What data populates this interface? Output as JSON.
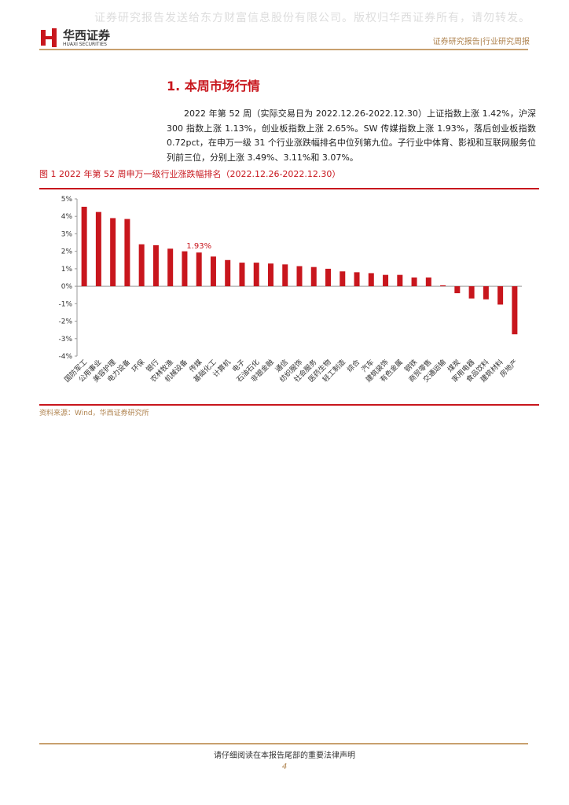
{
  "watermark": "证券研究报告发送给东方财富信息股份有限公司。版权归华西证券所有，请勿转发。",
  "header": {
    "logo_cn": "华西证券",
    "logo_en": "HUAXI SECURITIES",
    "right": "证券研究报告|行业研究周报"
  },
  "section_title": "1. 本周市场行情",
  "paragraph": "2022 年第 52 周（实际交易日为 2022.12.26-2022.12.30）上证指数上涨 1.42%，沪深 300 指数上涨 1.13%，创业板指数上涨 2.65%。SW 传媒指数上涨 1.93%，落后创业板指数 0.72pct，在申万一级 31 个行业涨跌幅排名中位列第九位。子行业中体育、影视和互联网服务位列前三位，分别上涨 3.49%、3.11%和 3.07%。",
  "figure_caption": "图 1 2022 年第 52 周申万一级行业涨跌幅排名（2022.12.26-2022.12.30）",
  "chart_data": {
    "type": "bar",
    "color": "#c8161d",
    "categories": [
      "国防军工",
      "公用事业",
      "美容护理",
      "电力设备",
      "环保",
      "银行",
      "农林牧渔",
      "机械设备",
      "传媒",
      "基础化工",
      "计算机",
      "电子",
      "石油石化",
      "非银金融",
      "通信",
      "纺织服饰",
      "社会服务",
      "医药生物",
      "轻工制造",
      "综合",
      "汽车",
      "建筑装饰",
      "有色金属",
      "钢铁",
      "商贸零售",
      "交通运输",
      "煤炭",
      "家用电器",
      "食品饮料",
      "建筑材料",
      "房地产"
    ],
    "values": [
      4.55,
      4.25,
      3.9,
      3.85,
      2.4,
      2.35,
      2.15,
      2.0,
      1.93,
      1.7,
      1.5,
      1.35,
      1.35,
      1.3,
      1.25,
      1.15,
      1.1,
      1.0,
      0.85,
      0.8,
      0.75,
      0.65,
      0.65,
      0.5,
      0.5,
      0.05,
      -0.4,
      -0.7,
      -0.75,
      -1.05,
      -2.75
    ],
    "value_labels": [
      null,
      null,
      null,
      null,
      null,
      null,
      null,
      null,
      "1.93%",
      null,
      null,
      null,
      null,
      null,
      null,
      null,
      null,
      null,
      null,
      null,
      null,
      null,
      null,
      null,
      null,
      null,
      null,
      null,
      null,
      null,
      null
    ],
    "ylim": [
      -4,
      5
    ],
    "yticks": [
      {
        "value": -4,
        "label": "-4%"
      },
      {
        "value": -3,
        "label": "-3%"
      },
      {
        "value": -2,
        "label": "-2%"
      },
      {
        "value": -1,
        "label": "-1%"
      },
      {
        "value": 0,
        "label": "0%"
      },
      {
        "value": 1,
        "label": "1%"
      },
      {
        "value": 2,
        "label": "2%"
      },
      {
        "value": 3,
        "label": "3%"
      },
      {
        "value": 4,
        "label": "4%"
      },
      {
        "value": 5,
        "label": "5%"
      }
    ]
  },
  "source": "资料来源：Wind，华西证券研究所",
  "footer": {
    "notice": "请仔细阅读在本报告尾部的重要法律声明",
    "page": "4"
  }
}
